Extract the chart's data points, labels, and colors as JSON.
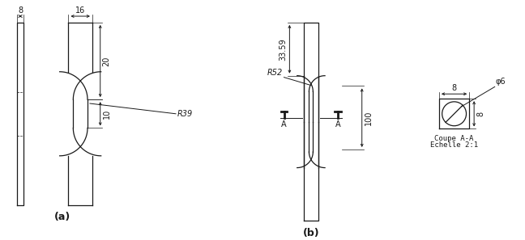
{
  "bg_color": "#ffffff",
  "line_color": "#1a1a1a",
  "font_size": 7,
  "label_a": "(a)",
  "label_b": "(b)",
  "dim_8_left": "8",
  "dim_16": "16",
  "dim_20": "20",
  "dim_10": "10",
  "dim_R39": "R39",
  "dim_3359": "33.59",
  "dim_R52": "R52",
  "dim_100": "100",
  "dim_8_cross_top": "8",
  "dim_phi6": "φ6",
  "dim_8_cross_right": "8",
  "coupe": "Coupe A-A",
  "echelle": "Echelle 2:1"
}
